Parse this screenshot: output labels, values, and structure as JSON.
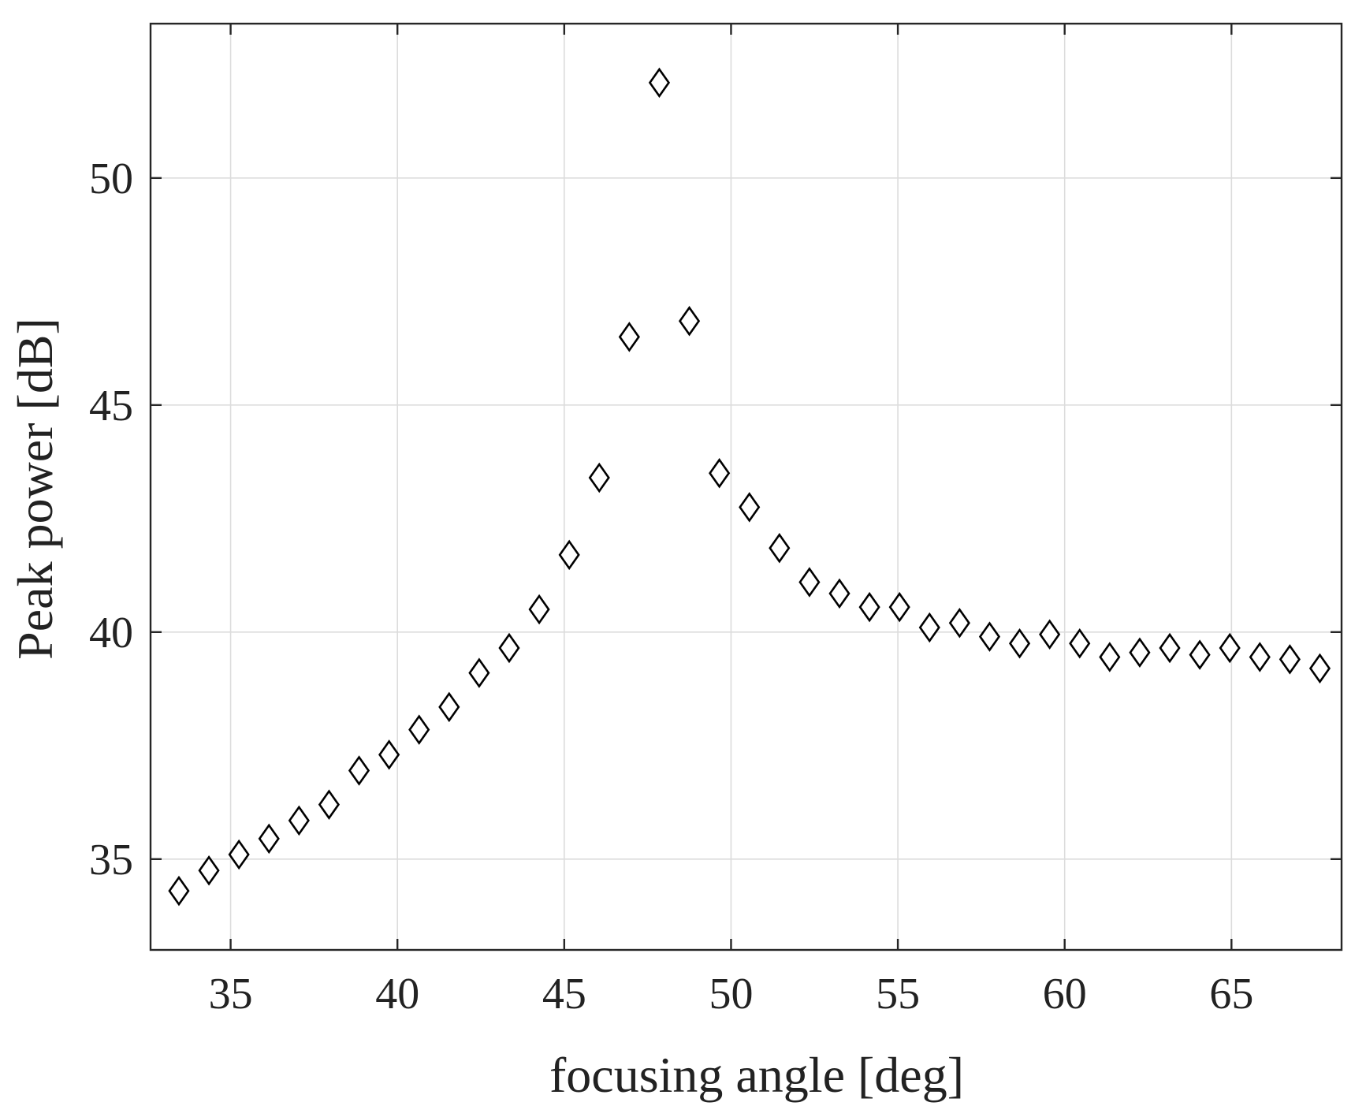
{
  "chart_data": {
    "type": "scatter",
    "title": "",
    "xlabel": "focusing angle [deg]",
    "ylabel": "Peak power [dB]",
    "xlim": [
      32.6,
      68.3
    ],
    "ylim": [
      33.0,
      53.4
    ],
    "xticks": [
      35,
      40,
      45,
      50,
      55,
      60,
      65
    ],
    "yticks": [
      35,
      40,
      45,
      50
    ],
    "grid": true,
    "marker": "diamond",
    "marker_color": "#000000",
    "series": [
      {
        "name": "",
        "x": [
          33.45,
          34.35,
          35.25,
          36.15,
          37.05,
          37.95,
          38.85,
          39.75,
          40.65,
          41.55,
          42.45,
          43.35,
          44.25,
          45.15,
          46.05,
          46.95,
          47.85,
          48.75,
          49.65,
          50.55,
          51.45,
          52.35,
          53.25,
          54.15,
          55.05,
          55.95,
          56.85,
          57.75,
          58.65,
          59.55,
          60.45,
          61.35,
          62.25,
          63.15,
          64.05,
          64.95,
          65.85,
          66.75,
          67.65
        ],
        "y": [
          34.3,
          34.75,
          35.1,
          35.45,
          35.85,
          36.2,
          36.95,
          37.3,
          37.85,
          38.35,
          39.1,
          39.65,
          40.5,
          41.7,
          43.4,
          46.5,
          52.1,
          46.85,
          43.5,
          42.75,
          41.85,
          41.1,
          40.85,
          40.55,
          40.55,
          40.1,
          40.2,
          39.9,
          39.75,
          39.95,
          39.75,
          39.45,
          39.55,
          39.65,
          39.5,
          39.65,
          39.45,
          39.4,
          39.2
        ]
      }
    ]
  }
}
